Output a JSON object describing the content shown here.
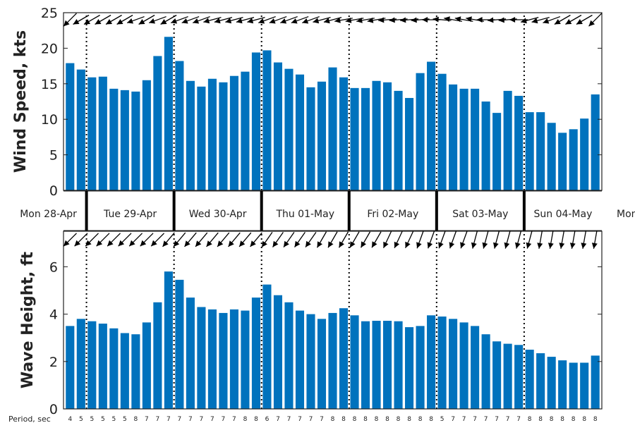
{
  "colors": {
    "bar": "#0072bd",
    "axis": "#222222",
    "arrow": "#000000"
  },
  "chart_data": [
    {
      "type": "bar",
      "ylabel": "Wind Speed, kts",
      "ylim": [
        0,
        25
      ],
      "yticks": [
        0,
        5,
        10,
        15,
        20,
        25
      ],
      "values": [
        17.9,
        17.0,
        15.9,
        16.0,
        14.3,
        14.1,
        13.9,
        15.5,
        18.9,
        21.6,
        18.2,
        15.4,
        14.6,
        15.7,
        15.2,
        16.1,
        16.7,
        19.4,
        19.7,
        18.0,
        17.1,
        16.3,
        14.5,
        15.3,
        17.3,
        15.9,
        14.4,
        14.4,
        15.4,
        15.2,
        14.0,
        13.0,
        16.5,
        18.1,
        16.4,
        14.9,
        14.3,
        14.3,
        12.5,
        10.9,
        14.0,
        13.3,
        11.0,
        11.0,
        9.5,
        8.1,
        8.6,
        10.1,
        13.5
      ],
      "direction_deg": [
        45,
        60,
        60,
        60,
        60,
        60,
        70,
        60,
        70,
        60,
        70,
        70,
        70,
        75,
        75,
        75,
        75,
        75,
        70,
        70,
        70,
        70,
        70,
        75,
        75,
        80,
        80,
        80,
        80,
        85,
        85,
        85,
        85,
        90,
        95,
        100,
        100,
        100,
        90,
        85,
        85,
        90,
        75,
        75,
        70,
        60,
        60,
        60,
        45
      ]
    },
    {
      "type": "bar",
      "ylabel": "Wave Height, ft",
      "ylim": [
        0,
        7.5
      ],
      "yticks": [
        0,
        2,
        4,
        6
      ],
      "values": [
        3.5,
        3.8,
        3.7,
        3.6,
        3.4,
        3.2,
        3.15,
        3.65,
        4.5,
        5.8,
        5.45,
        4.7,
        4.3,
        4.2,
        4.05,
        4.2,
        4.15,
        4.7,
        5.25,
        4.8,
        4.5,
        4.15,
        4.0,
        3.8,
        4.05,
        4.25,
        3.95,
        3.7,
        3.72,
        3.72,
        3.7,
        3.45,
        3.5,
        3.95,
        3.9,
        3.8,
        3.65,
        3.5,
        3.15,
        2.85,
        2.75,
        2.7,
        2.5,
        2.35,
        2.2,
        2.05,
        1.95,
        1.95,
        2.25
      ],
      "direction_deg": [
        45,
        45,
        45,
        45,
        45,
        45,
        45,
        45,
        45,
        40,
        40,
        40,
        40,
        40,
        40,
        40,
        40,
        40,
        35,
        35,
        35,
        35,
        35,
        30,
        30,
        30,
        30,
        30,
        30,
        25,
        25,
        25,
        20,
        20,
        20,
        20,
        20,
        15,
        15,
        15,
        15,
        15,
        15,
        10,
        10,
        10,
        10,
        10,
        10
      ]
    }
  ],
  "day_labels": [
    "Mon 28-Apr",
    "Tue 29-Apr",
    "Wed 30-Apr",
    "Thu 01-May",
    "Fri 02-May",
    "Sat 03-May",
    "Sun 04-May",
    "Mon"
  ],
  "day_boundaries": [
    1.5,
    9.5,
    17.5,
    25.5,
    33.5,
    41.5
  ],
  "period_label": "Period, sec",
  "periods": [
    "4",
    "5",
    "5",
    "5",
    "5",
    "5",
    "8",
    "7",
    "7",
    "7",
    "7",
    "7",
    "7",
    "7",
    "7",
    "7",
    "8",
    "8",
    "6",
    "7",
    "7",
    "7",
    "7",
    "7",
    "8",
    "8",
    "8",
    "8",
    "8",
    "8",
    "8",
    "8",
    "8",
    "8",
    "5",
    "7",
    "7",
    "7",
    "7",
    "7",
    "7",
    "7",
    "8",
    "8",
    "8",
    "8",
    "8",
    "8",
    "8"
  ]
}
